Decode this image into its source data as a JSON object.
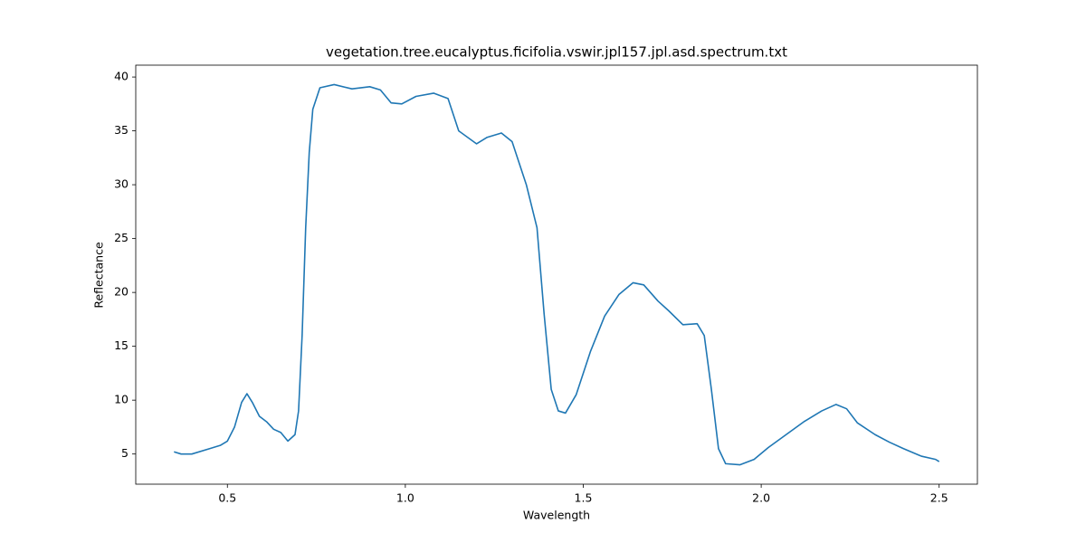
{
  "chart_data": {
    "type": "line",
    "title": "vegetation.tree.eucalyptus.ficifolia.vswir.jpl157.jpl.asd.spectrum.txt",
    "x_label": "Wavelength",
    "y_label": "Reflectance",
    "x": [
      0.35,
      0.37,
      0.4,
      0.45,
      0.48,
      0.5,
      0.52,
      0.54,
      0.555,
      0.57,
      0.59,
      0.61,
      0.63,
      0.65,
      0.67,
      0.69,
      0.7,
      0.71,
      0.72,
      0.73,
      0.74,
      0.76,
      0.8,
      0.85,
      0.9,
      0.93,
      0.96,
      0.99,
      1.03,
      1.08,
      1.12,
      1.15,
      1.2,
      1.23,
      1.27,
      1.3,
      1.34,
      1.37,
      1.39,
      1.41,
      1.43,
      1.45,
      1.48,
      1.52,
      1.56,
      1.6,
      1.64,
      1.67,
      1.71,
      1.74,
      1.78,
      1.82,
      1.84,
      1.86,
      1.88,
      1.9,
      1.94,
      1.98,
      2.02,
      2.07,
      2.12,
      2.17,
      2.21,
      2.24,
      2.27,
      2.32,
      2.36,
      2.4,
      2.45,
      2.49,
      2.5
    ],
    "series": [
      {
        "name": "Reflectance",
        "color": "#1f77b4",
        "values": [
          5.2,
          5.0,
          5.0,
          5.5,
          5.8,
          6.2,
          7.5,
          9.8,
          10.6,
          9.8,
          8.5,
          8.0,
          7.3,
          7.0,
          6.2,
          6.8,
          9.0,
          16,
          26,
          33,
          37,
          39.0,
          39.3,
          38.9,
          39.1,
          38.8,
          37.6,
          37.5,
          38.2,
          38.5,
          38.0,
          35.0,
          33.8,
          34.4,
          34.8,
          34.0,
          30.0,
          26.0,
          18,
          11,
          9.0,
          8.8,
          10.5,
          14.5,
          17.8,
          19.8,
          20.9,
          20.7,
          19.2,
          18.3,
          17.0,
          17.1,
          16.0,
          11,
          5.5,
          4.1,
          4.0,
          4.5,
          5.6,
          6.8,
          8.0,
          9.0,
          9.6,
          9.2,
          7.9,
          6.8,
          6.1,
          5.5,
          4.8,
          4.5,
          4.3
        ]
      }
    ],
    "xlim": [
      0.2425,
      2.6075
    ],
    "xticks": [
      0.5,
      {
        "value": 1,
        "label": "1.0"
      },
      1.5,
      {
        "value": 2,
        "label": "2.0"
      },
      2.5
    ],
    "ylim": [
      2.2,
      41.1
    ],
    "yticks": [
      5,
      10,
      15,
      20,
      25,
      30,
      35,
      40
    ],
    "grid": false
  }
}
